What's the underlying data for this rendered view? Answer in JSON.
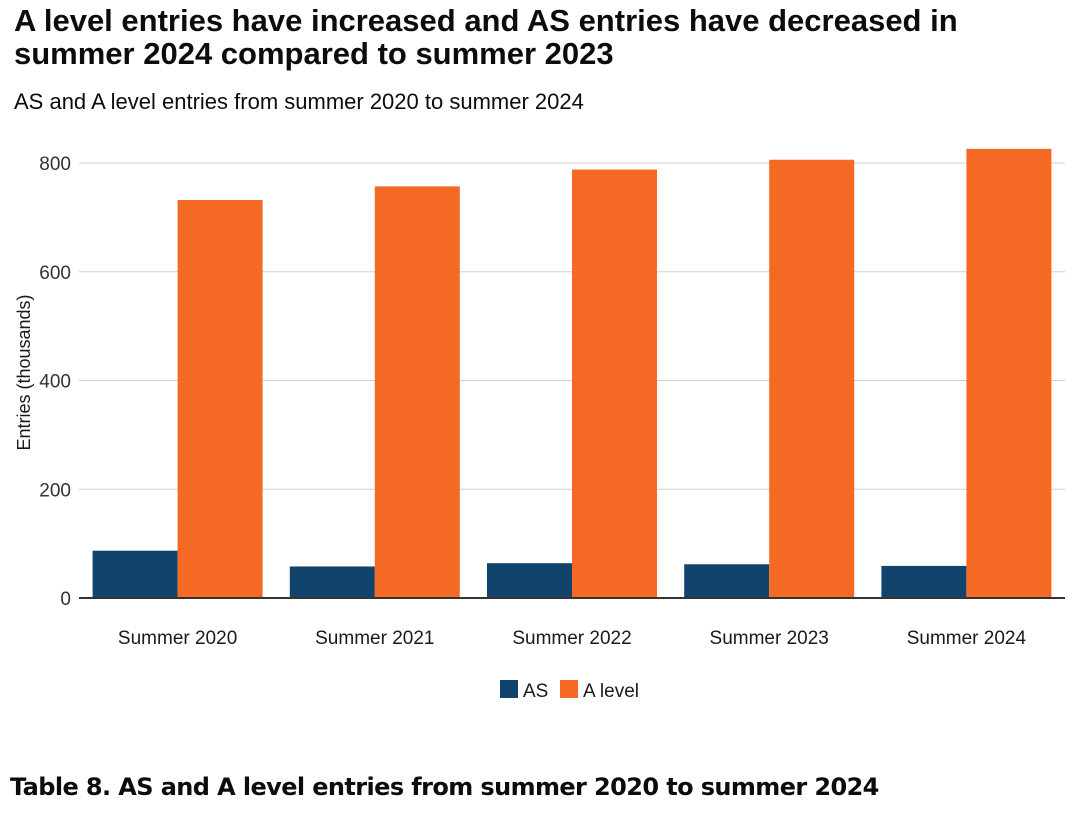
{
  "title": "A level entries have increased and AS entries have decreased in summer 2024 compared to summer 2023",
  "subtitle": "AS and A level entries from summer 2020 to summer 2024",
  "table_caption": "Table 8. AS and A level entries from summer 2020 to summer 2024",
  "chart_data": {
    "type": "bar",
    "title": "A level entries have increased and AS entries have decreased in summer 2024 compared to summer 2023",
    "subtitle": "AS and A level entries from summer 2020 to summer 2024",
    "xlabel": "",
    "ylabel": "Entries (thousands)",
    "categories": [
      "Summer 2020",
      "Summer 2021",
      "Summer 2022",
      "Summer 2023",
      "Summer 2024"
    ],
    "series": [
      {
        "name": "AS",
        "color": "#12436d",
        "values": [
          87,
          58,
          64,
          62,
          59
        ]
      },
      {
        "name": "A level",
        "color": "#f46a25",
        "values": [
          732,
          757,
          788,
          806,
          826
        ]
      }
    ],
    "ylim": [
      0,
      800
    ],
    "yticks": [
      0,
      200,
      400,
      600,
      800
    ],
    "grid": true,
    "legend_position": "bottom"
  }
}
